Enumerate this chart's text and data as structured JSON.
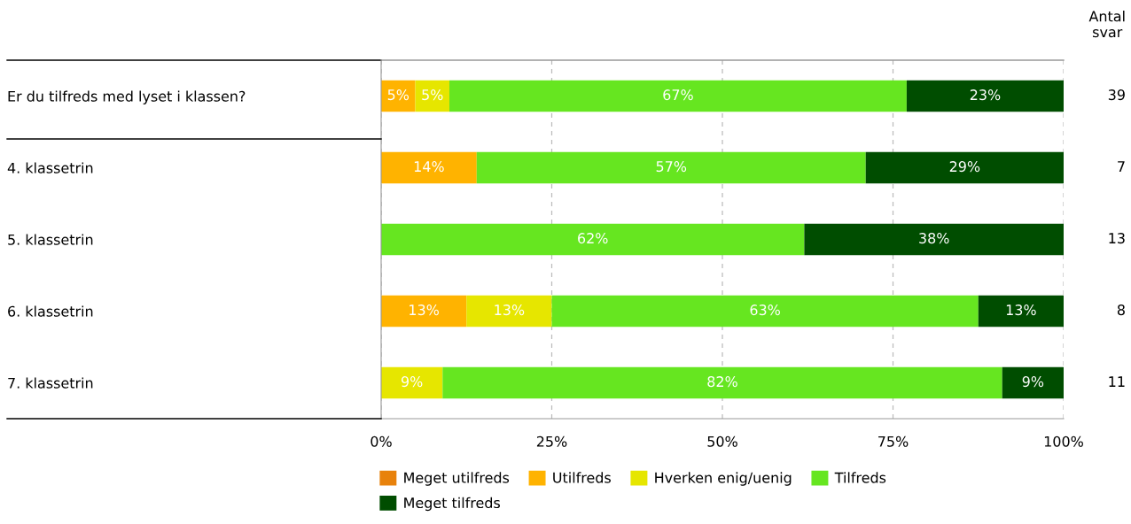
{
  "chart_data": {
    "type": "bar",
    "orientation": "horizontal",
    "stacked": true,
    "categories": [
      "Er du tilfreds med lyset i klassen?",
      "4. klassetrin",
      "5. klassetrin",
      "6. klassetrin",
      "7. klassetrin"
    ],
    "series": [
      {
        "name": "Meget utilfreds",
        "color": "#e8820c",
        "values": [
          0,
          0,
          0,
          0,
          0
        ],
        "value_labels": [
          null,
          null,
          null,
          null,
          null
        ]
      },
      {
        "name": "Utilfreds",
        "color": "#ffb300",
        "values": [
          5,
          14,
          0,
          12.5,
          0
        ],
        "value_labels": [
          "5%",
          "14%",
          null,
          "13%",
          null
        ]
      },
      {
        "name": "Hverken enig/uenig",
        "color": "#e6e600",
        "values": [
          5,
          0,
          0,
          12.5,
          9
        ],
        "value_labels": [
          "5%",
          null,
          null,
          "13%",
          "9%"
        ]
      },
      {
        "name": "Tilfreds",
        "color": "#66e620",
        "values": [
          67,
          57,
          62,
          62.5,
          82
        ],
        "value_labels": [
          "67%",
          "57%",
          "62%",
          "63%",
          "82%"
        ]
      },
      {
        "name": "Meget tilfreds",
        "color": "#004d00",
        "values": [
          23,
          29,
          38,
          12.5,
          9
        ],
        "value_labels": [
          "23%",
          "29%",
          "38%",
          "13%",
          "9%"
        ]
      }
    ],
    "xlim": [
      0,
      100
    ],
    "xticks": [
      {
        "value": 0,
        "label": "0%"
      },
      {
        "value": 25,
        "label": "25%"
      },
      {
        "value": 50,
        "label": "50%"
      },
      {
        "value": 75,
        "label": "75%"
      },
      {
        "value": 100,
        "label": "100%"
      }
    ],
    "grid": "x",
    "legend": "bottom",
    "annotations": [
      "Antal\nsvar",
      "39",
      "7",
      "13",
      "8",
      "11"
    ]
  }
}
